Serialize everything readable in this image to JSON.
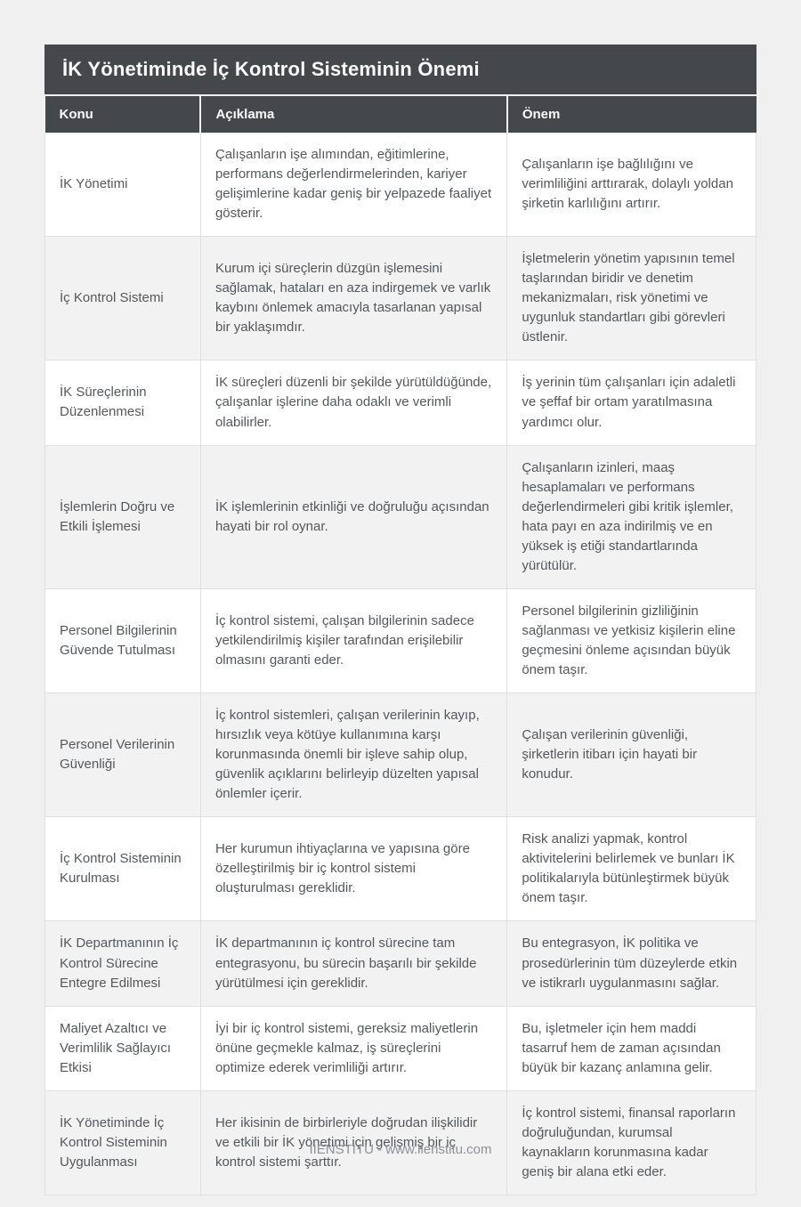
{
  "theme": {
    "page_bg": "#f0f0f0",
    "header_bg": "#45484a",
    "header_text": "#fafafa",
    "row_bg": "#ffffff",
    "row_alt_bg": "#f2f2f2",
    "cell_text": "#54585c",
    "border_color": "#e0e0e0",
    "footer_text": "#8d9196"
  },
  "table": {
    "title": "İK Yönetiminde İç Kontrol Sisteminin Önemi",
    "columns": {
      "konu": "Konu",
      "aciklama": "Açıklama",
      "onem": "Önem"
    },
    "rows": [
      {
        "konu": "İK Yönetimi",
        "aciklama": "Çalışanların işe alımından, eğitimlerine, performans değerlendirmelerinden, kariyer gelişimlerine kadar geniş bir yelpazede faaliyet gösterir.",
        "onem": "Çalışanların işe bağlılığını ve verimliliğini arttırarak, dolaylı yoldan şirketin karlılığını artırır."
      },
      {
        "konu": "İç Kontrol Sistemi",
        "aciklama": "Kurum içi süreçlerin düzgün işlemesini sağlamak, hataları en aza indirgemek ve varlık kaybını önlemek amacıyla tasarlanan yapısal bir yaklaşımdır.",
        "onem": "İşletmelerin yönetim yapısının temel taşlarından biridir ve denetim mekanizmaları, risk yönetimi ve uygunluk standartları gibi görevleri üstlenir."
      },
      {
        "konu": "İK Süreçlerinin Düzenlenmesi",
        "aciklama": "İK süreçleri düzenli bir şekilde yürütüldüğünde, çalışanlar işlerine daha odaklı ve verimli olabilirler.",
        "onem": "İş yerinin tüm çalışanları için adaletli ve şeffaf bir ortam yaratılmasına yardımcı olur."
      },
      {
        "konu": "İşlemlerin Doğru ve Etkili İşlemesi",
        "aciklama": "İK işlemlerinin etkinliği ve doğruluğu açısından hayati bir rol oynar.",
        "onem": "Çalışanların izinleri, maaş hesaplamaları ve performans değerlendirmeleri gibi kritik işlemler, hata payı en aza indirilmiş ve en yüksek iş etiği standartlarında yürütülür."
      },
      {
        "konu": "Personel Bilgilerinin Güvende Tutulması",
        "aciklama": "İç kontrol sistemi, çalışan bilgilerinin sadece yetkilendirilmiş kişiler tarafından erişilebilir olmasını garanti eder.",
        "onem": "Personel bilgilerinin gizliliğinin sağlanması ve yetkisiz kişilerin eline geçmesini önleme açısından büyük önem taşır."
      },
      {
        "konu": "Personel Verilerinin Güvenliği",
        "aciklama": "İç kontrol sistemleri, çalışan verilerinin kayıp, hırsızlık veya kötüye kullanımına karşı korunmasında önemli bir işleve sahip olup, güvenlik açıklarını belirleyip düzelten yapısal önlemler içerir.",
        "onem": "Çalışan verilerinin güvenliği, şirketlerin itibarı için hayati bir konudur."
      },
      {
        "konu": "İç Kontrol Sisteminin Kurulması",
        "aciklama": "Her kurumun ihtiyaçlarına ve yapısına göre özelleştirilmiş bir iç kontrol sistemi oluşturulması gereklidir.",
        "onem": "Risk analizi yapmak, kontrol aktivitelerini belirlemek ve bunları İK politikalarıyla bütünleştirmek büyük önem taşır."
      },
      {
        "konu": "İK Departmanının İç Kontrol Sürecine Entegre Edilmesi",
        "aciklama": "İK departmanının iç kontrol sürecine tam entegrasyonu, bu sürecin başarılı bir şekilde yürütülmesi için gereklidir.",
        "onem": "Bu entegrasyon, İK politika ve prosedürlerinin tüm düzeylerde etkin ve istikrarlı uygulanmasını sağlar."
      },
      {
        "konu": "Maliyet Azaltıcı ve Verimlilik Sağlayıcı Etkisi",
        "aciklama": "İyi bir iç kontrol sistemi, gereksiz maliyetlerin önüne geçmekle kalmaz, iş süreçlerini optimize ederek verimliliği artırır.",
        "onem": "Bu, işletmeler için hem maddi tasarruf hem de zaman açısından büyük bir kazanç anlamına gelir."
      },
      {
        "konu": "İK Yönetiminde İç Kontrol Sisteminin Uygulanması",
        "aciklama": "Her ikisinin de birbirleriyle doğrudan ilişkilidir ve etkili bir İK yönetimi için gelişmiş bir iç kontrol sistemi şarttır.",
        "onem": "İç kontrol sistemi, finansal raporların doğruluğundan, kurumsal kaynakların korunmasına kadar geniş bir alana etki eder."
      }
    ]
  },
  "footer": {
    "text": "IIENSTITU - www.iienstitu.com"
  }
}
